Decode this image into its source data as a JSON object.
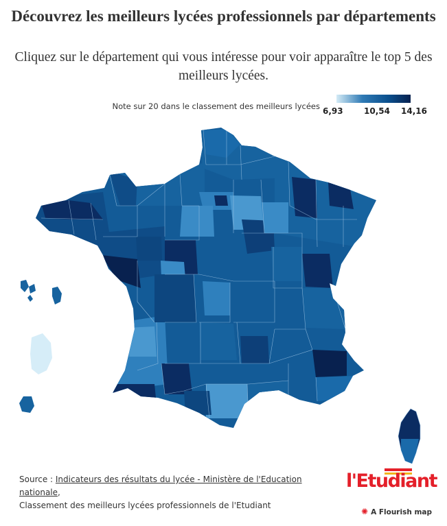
{
  "header": {
    "title": "Découvrez les meilleurs lycées professionnels par départements",
    "subtitle": "Cliquez sur le département qui vous intéresse pour voir apparaître le top 5 des meilleurs lycées."
  },
  "legend": {
    "title": "Note sur 20 dans le classement des meilleurs lycées",
    "min": "6,93",
    "mid": "10,54",
    "max": "14,16",
    "colors": [
      "#d4ebf6",
      "#2f7ab5",
      "#0a4f8d",
      "#08214f"
    ]
  },
  "source": {
    "prefix": "Source : ",
    "link": "Indicateurs des résultats du lycée - Ministère de l'Education nationale",
    "suffix": ",",
    "line2": "Classement des meilleurs lycées professionnels de l'Etudiant"
  },
  "branding": {
    "logo": "l'Etudiant",
    "flourish": "A Flourish map",
    "flourish_icon": "flourish-burst-icon"
  },
  "map": {
    "regions": [
      "metropolitan-france",
      "corsica",
      "guadeloupe",
      "martinique",
      "guyane",
      "reunion"
    ],
    "fill_colors": {
      "dark": "#0b2c62",
      "darkmid": "#0d467f",
      "mid": "#17639f",
      "midlight": "#2f80bd",
      "light": "#4a98cf",
      "pale": "#d6edf8"
    }
  }
}
